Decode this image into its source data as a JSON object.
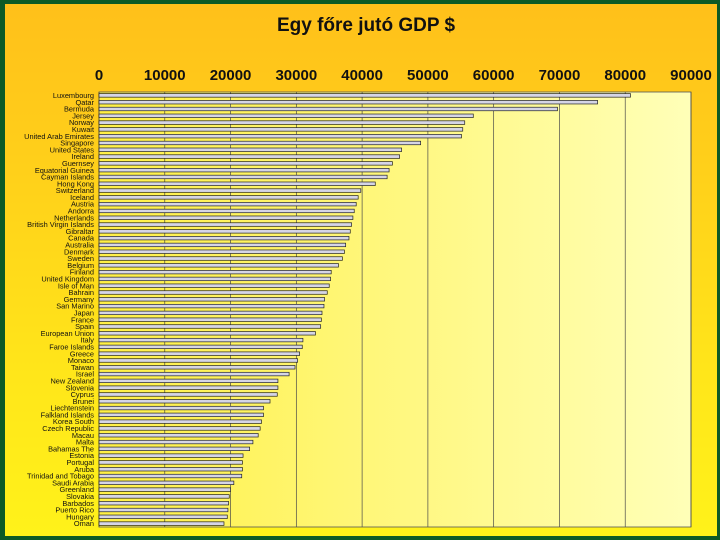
{
  "chart_data": {
    "type": "bar",
    "orientation": "horizontal",
    "title": "Egy főre jutó GDP $",
    "xlabel": "",
    "ylabel": "",
    "xlim": [
      0,
      90000
    ],
    "ticks": [
      "0",
      "10000",
      "20000",
      "30000",
      "40000",
      "50000",
      "60000",
      "70000",
      "80000",
      "90000"
    ],
    "tick_values": [
      0,
      10000,
      20000,
      30000,
      40000,
      50000,
      60000,
      70000,
      80000,
      90000
    ],
    "axis_position": "top",
    "grid": true,
    "categories": [
      "Luxembourg",
      "Qatar",
      "Bermuda",
      "Jersey",
      "Norway",
      "Kuwait",
      "United Arab Emirates",
      "Singapore",
      "United States",
      "Ireland",
      "Guernsey",
      "Equatorial Guinea",
      "Cayman Islands",
      "Hong Kong",
      "Switzerland",
      "Iceland",
      "Austria",
      "Andorra",
      "Netherlands",
      "British Virgin Islands",
      "Gibraltar",
      "Canada",
      "Australia",
      "Denmark",
      "Sweden",
      "Belgium",
      "Finland",
      "United Kingdom",
      "Isle of Man",
      "Bahrain",
      "Germany",
      "San Marino",
      "Japan",
      "France",
      "Spain",
      "European Union",
      "Italy",
      "Faroe Islands",
      "Greece",
      "Monaco",
      "Taiwan",
      "Israel",
      "New Zealand",
      "Slovenia",
      "Cyprus",
      "Brunei",
      "Liechtenstein",
      "Falkland Islands",
      "Korea South",
      "Czech Republic",
      "Macau",
      "Malta",
      "Bahamas The",
      "Estonia",
      "Portugal",
      "Aruba",
      "Trinidad and Tobago",
      "Saudi Arabia",
      "Greenland",
      "Slovakia",
      "Barbados",
      "Puerto Rico",
      "Hungary",
      "Oman"
    ],
    "values": [
      80800,
      75800,
      69700,
      56900,
      55600,
      55300,
      55100,
      48900,
      46000,
      45700,
      44600,
      44100,
      43800,
      42000,
      39800,
      39400,
      39100,
      38800,
      38600,
      38400,
      38200,
      38000,
      37500,
      37300,
      37000,
      36400,
      35300,
      35200,
      35000,
      34700,
      34300,
      34200,
      33900,
      33800,
      33700,
      32900,
      31000,
      30900,
      30500,
      30200,
      29800,
      28900,
      27200,
      27200,
      27100,
      26000,
      25000,
      25000,
      24700,
      24500,
      24200,
      23400,
      22900,
      21900,
      21800,
      21800,
      21700,
      20500,
      20000,
      19800,
      19700,
      19600,
      19500,
      19000
    ],
    "colors": {
      "bar_fill": "#d5d5e6",
      "bar_stroke": "#222222",
      "plot_bg_start": "#fff045",
      "plot_bg_end": "#ffffb8",
      "grid": "#4a4a4a"
    }
  }
}
